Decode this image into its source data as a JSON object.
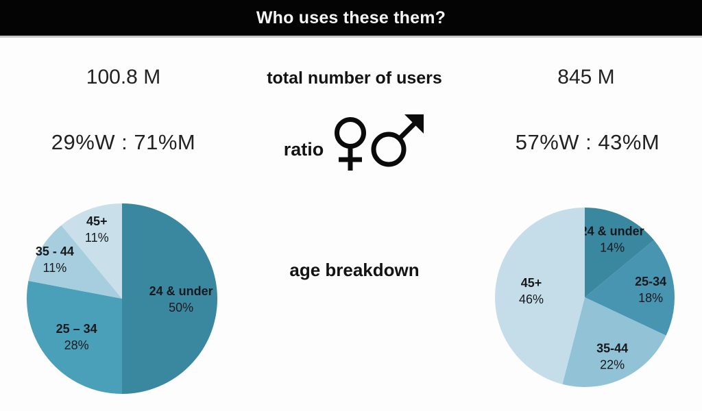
{
  "header": {
    "title": "Who uses these them?",
    "bg_color": "#040404",
    "text_color": "#f5f5f5"
  },
  "rows": {
    "total_users": {
      "label": "total number of users",
      "left_value": "100.8 M",
      "right_value": "845 M"
    },
    "ratio": {
      "label": "ratio",
      "left_value": "29%W : 71%M",
      "right_value": "57%W : 43%M",
      "female_icon": "female-symbol",
      "male_icon": "male-symbol"
    },
    "age": {
      "label": "age breakdown"
    }
  },
  "chart_data": [
    {
      "type": "pie",
      "position": "left",
      "title": "age breakdown",
      "total_users": "100.8 M",
      "gender_ratio": "29%W : 71%M",
      "start_angle_deg": 0,
      "direction": "clockwise",
      "labels_inside": true,
      "slices": [
        {
          "label": "24 & under",
          "pct": 50,
          "color": "#3a87a0"
        },
        {
          "label": "25 – 34",
          "pct": 28,
          "color": "#4ba0b9"
        },
        {
          "label": "35 - 44",
          "pct": 11,
          "color": "#a6cede"
        },
        {
          "label": "45+",
          "pct": 11,
          "color": "#c9e0ea"
        }
      ]
    },
    {
      "type": "pie",
      "position": "right",
      "title": "age breakdown",
      "total_users": "845 M",
      "gender_ratio": "57%W : 43%M",
      "start_angle_deg": 0,
      "direction": "clockwise",
      "labels_inside": true,
      "slices": [
        {
          "label": "24 & under",
          "pct": 14,
          "color": "#3a87a0"
        },
        {
          "label": "25-34",
          "pct": 18,
          "color": "#4795b1"
        },
        {
          "label": "35-44",
          "pct": 22,
          "color": "#92c2d6"
        },
        {
          "label": "45+",
          "pct": 46,
          "color": "#c5dde9"
        }
      ]
    }
  ]
}
